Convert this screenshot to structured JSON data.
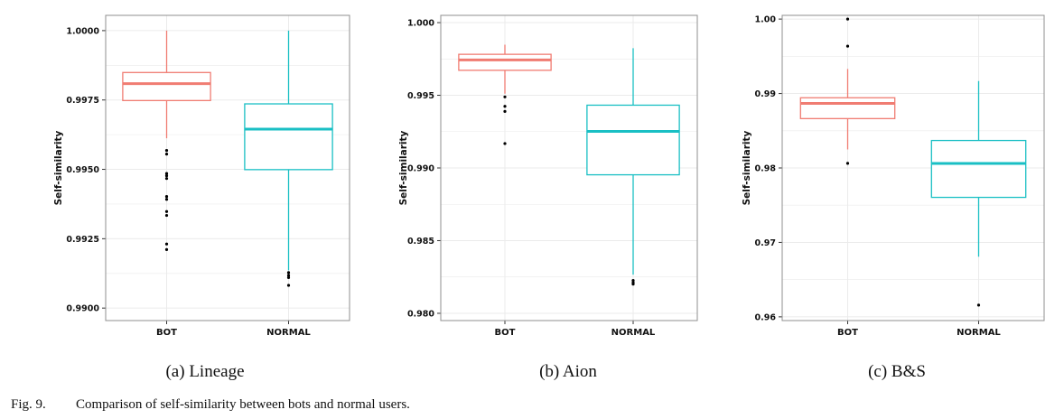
{
  "figure_caption": {
    "label": "Fig. 9.",
    "text": "Comparison of self-similarity between bots and normal users."
  },
  "colors": {
    "bot": "#F07C72",
    "normal": "#19BFC4",
    "grid": "#EBEBEB",
    "panel_border": "#8F8F8F"
  },
  "chart_data": [
    {
      "type": "boxplot",
      "subtitle": "(a) Lineage",
      "ylabel": "Self-similarity",
      "xlabel": "",
      "ylim": [
        0.98955,
        1.00055
      ],
      "y_ticks": [
        0.99,
        0.9925,
        0.995,
        0.9975,
        1.0
      ],
      "y_tick_labels": [
        "0.9900",
        "0.9925",
        "0.9950",
        "0.9975",
        "1.0000"
      ],
      "grid": true,
      "categories": [
        "BOT",
        "NORMAL"
      ],
      "series": [
        {
          "name": "BOT",
          "q1": 0.99748,
          "median": 0.99809,
          "q3": 0.99849,
          "whisker_low": 0.99612,
          "whisker_high": 1.0,
          "outliers": [
            0.99568,
            0.99555,
            0.99485,
            0.99477,
            0.99467,
            0.99402,
            0.99392,
            0.99348,
            0.99334,
            0.99231,
            0.99211
          ]
        },
        {
          "name": "NORMAL",
          "q1": 0.99499,
          "median": 0.99645,
          "q3": 0.99736,
          "whisker_low": 0.99136,
          "whisker_high": 1.0,
          "outliers": [
            0.99128,
            0.99118,
            0.9911,
            0.99082
          ]
        }
      ]
    },
    {
      "type": "boxplot",
      "subtitle": "(b) Aion",
      "ylabel": "Self-similarity",
      "xlabel": "",
      "ylim": [
        0.9795,
        1.0005
      ],
      "y_ticks": [
        0.98,
        0.985,
        0.99,
        0.995,
        1.0
      ],
      "y_tick_labels": [
        "0.980",
        "0.985",
        "0.990",
        "0.995",
        "1.000"
      ],
      "grid": true,
      "categories": [
        "BOT",
        "NORMAL"
      ],
      "series": [
        {
          "name": "BOT",
          "q1": 0.99672,
          "median": 0.99743,
          "q3": 0.99782,
          "whisker_low": 0.99511,
          "whisker_high": 0.99848,
          "outliers": [
            0.99489,
            0.99424,
            0.99389,
            0.99168
          ]
        },
        {
          "name": "NORMAL",
          "q1": 0.98953,
          "median": 0.99252,
          "q3": 0.99432,
          "whisker_low": 0.98266,
          "whisker_high": 0.99824,
          "outliers": [
            0.98226,
            0.98211,
            0.98201
          ]
        }
      ]
    },
    {
      "type": "boxplot",
      "subtitle": "(c) B&S",
      "ylabel": "Self-similarity",
      "xlabel": "",
      "ylim": [
        0.9595,
        1.0005
      ],
      "y_ticks": [
        0.96,
        0.97,
        0.98,
        0.99,
        1.0
      ],
      "y_tick_labels": [
        "0.96",
        "0.97",
        "0.98",
        "0.99",
        "1.00"
      ],
      "grid": true,
      "categories": [
        "BOT",
        "NORMAL"
      ],
      "series": [
        {
          "name": "BOT",
          "q1": 0.98663,
          "median": 0.98868,
          "q3": 0.98943,
          "whisker_low": 0.98249,
          "whisker_high": 0.9933,
          "outliers": [
            1.0,
            0.99636,
            0.98062
          ]
        },
        {
          "name": "NORMAL",
          "q1": 0.97605,
          "median": 0.98061,
          "q3": 0.98369,
          "whisker_low": 0.96808,
          "whisker_high": 0.99168,
          "outliers": [
            0.96158
          ]
        }
      ]
    }
  ]
}
